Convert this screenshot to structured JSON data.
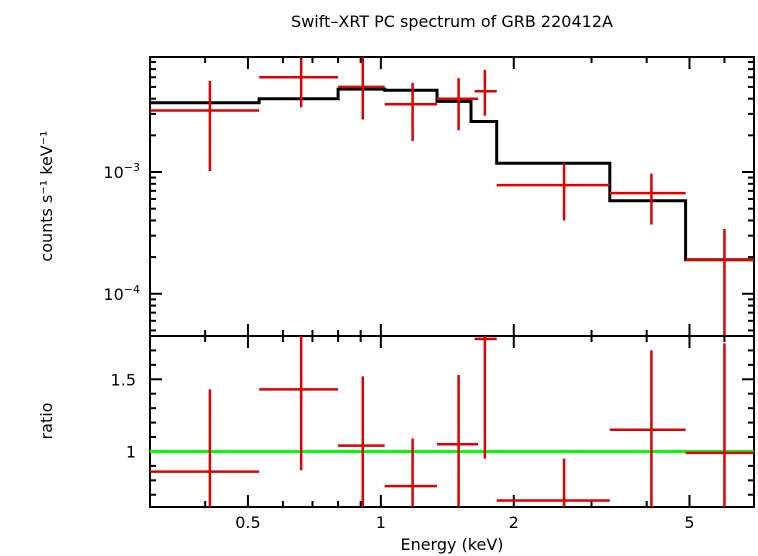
{
  "chart_data": [
    {
      "type": "scatter",
      "title": "Swift–XRT PC spectrum of GRB 220412A",
      "ylabel": "counts s⁻¹ keV⁻¹",
      "yscale": "log",
      "xscale": "log",
      "xlim": [
        0.3,
        7.0
      ],
      "ylim": [
        4.5e-05,
        0.0088
      ],
      "y_ticks": [
        {
          "value": 0.001,
          "base": "10",
          "exp": "−3"
        },
        {
          "value": 0.0001,
          "base": "10",
          "exp": "−4"
        }
      ],
      "series": [
        {
          "role": "data",
          "color": "#e00000",
          "points": [
            {
              "x": 0.41,
              "xlo": 0.3,
              "xhi": 0.53,
              "y": 0.0032,
              "ylo": 0.00102,
              "yhi": 0.0056
            },
            {
              "x": 0.66,
              "xlo": 0.53,
              "xhi": 0.8,
              "y": 0.006,
              "ylo": 0.0034,
              "yhi": 0.0087
            },
            {
              "x": 0.91,
              "xlo": 0.8,
              "xhi": 1.02,
              "y": 0.005,
              "ylo": 0.0027,
              "yhi": 0.0088
            },
            {
              "x": 1.18,
              "xlo": 1.02,
              "xhi": 1.34,
              "y": 0.0036,
              "ylo": 0.0018,
              "yhi": 0.0054
            },
            {
              "x": 1.5,
              "xlo": 1.34,
              "xhi": 1.66,
              "y": 0.004,
              "ylo": 0.0022,
              "yhi": 0.0059
            },
            {
              "x": 1.72,
              "xlo": 1.63,
              "xhi": 1.83,
              "y": 0.0046,
              "ylo": 0.0029,
              "yhi": 0.0069
            },
            {
              "x": 2.6,
              "xlo": 1.83,
              "xhi": 3.3,
              "y": 0.00078,
              "ylo": 0.0004,
              "yhi": 0.00118
            },
            {
              "x": 4.1,
              "xlo": 3.3,
              "xhi": 4.9,
              "y": 0.00067,
              "ylo": 0.00037,
              "yhi": 0.00097
            },
            {
              "x": 6.0,
              "xlo": 4.9,
              "xhi": 7.0,
              "y": 0.00019,
              "ylo": 4.5e-05,
              "yhi": 0.00034
            }
          ]
        },
        {
          "role": "model",
          "color": "#000000",
          "edges": [
            0.3,
            0.53,
            0.8,
            1.02,
            1.34,
            1.6,
            1.83,
            3.3,
            4.9,
            7.0
          ],
          "values": [
            0.0037,
            0.004,
            0.0048,
            0.0047,
            0.0038,
            0.0026,
            0.00118,
            0.00058,
            0.00019
          ]
        }
      ]
    },
    {
      "type": "scatter",
      "xlabel": "Energy (keV)",
      "ylabel": "ratio",
      "xscale": "log",
      "xlim": [
        0.3,
        7.0
      ],
      "ylim": [
        0.615,
        1.8
      ],
      "x_ticks": [
        {
          "value": 0.5,
          "label": "0.5"
        },
        {
          "value": 1,
          "label": "1"
        },
        {
          "value": 2,
          "label": "2"
        },
        {
          "value": 5,
          "label": "5"
        }
      ],
      "y_ticks": [
        {
          "value": 1,
          "label": "1"
        },
        {
          "value": 1.5,
          "label": "1.5"
        }
      ],
      "reference_line": {
        "y": 1,
        "color": "#00ff00"
      },
      "series": [
        {
          "role": "data",
          "color": "#e00000",
          "points": [
            {
              "x": 0.41,
              "xlo": 0.3,
              "xhi": 0.53,
              "y": 0.86,
              "ylo": 0.615,
              "yhi": 1.43
            },
            {
              "x": 0.66,
              "xlo": 0.53,
              "xhi": 0.8,
              "y": 1.43,
              "ylo": 0.87,
              "yhi": 1.8
            },
            {
              "x": 0.91,
              "xlo": 0.8,
              "xhi": 1.02,
              "y": 1.04,
              "ylo": 0.615,
              "yhi": 1.52
            },
            {
              "x": 1.18,
              "xlo": 1.02,
              "xhi": 1.34,
              "y": 0.76,
              "ylo": 0.615,
              "yhi": 1.09
            },
            {
              "x": 1.5,
              "xlo": 1.34,
              "xhi": 1.66,
              "y": 1.05,
              "ylo": 0.615,
              "yhi": 1.53
            },
            {
              "x": 1.72,
              "xlo": 1.63,
              "xhi": 1.83,
              "y": 1.78,
              "ylo": 0.95,
              "yhi": 1.8
            },
            {
              "x": 2.6,
              "xlo": 1.83,
              "xhi": 3.3,
              "y": 0.66,
              "ylo": 0.615,
              "yhi": 0.95
            },
            {
              "x": 4.1,
              "xlo": 3.3,
              "xhi": 4.9,
              "y": 1.15,
              "ylo": 0.615,
              "yhi": 1.7
            },
            {
              "x": 6.0,
              "xlo": 4.9,
              "xhi": 7.0,
              "y": 0.99,
              "ylo": 0.615,
              "yhi": 1.75
            }
          ]
        }
      ]
    }
  ]
}
